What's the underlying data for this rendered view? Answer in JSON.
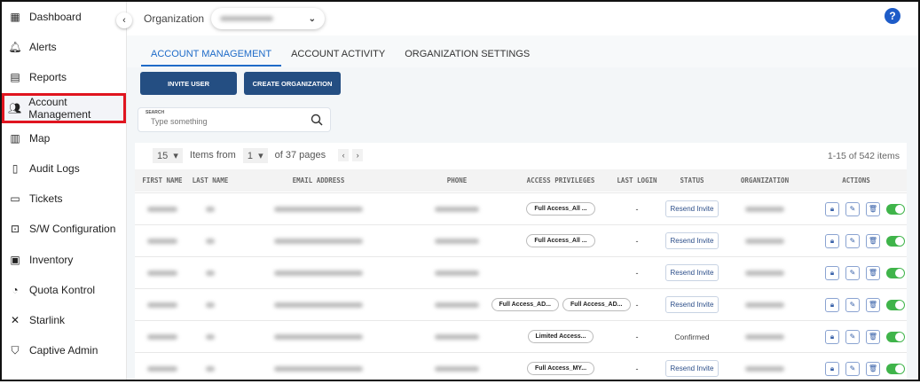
{
  "sidebar": {
    "items": [
      {
        "label": "Dashboard",
        "icon": "grid-icon"
      },
      {
        "label": "Alerts",
        "icon": "bell-icon"
      },
      {
        "label": "Reports",
        "icon": "clipboard-icon"
      },
      {
        "label": "Account Management",
        "icon": "users-icon",
        "active": true
      },
      {
        "label": "Map",
        "icon": "map-icon"
      },
      {
        "label": "Audit Logs",
        "icon": "document-icon"
      },
      {
        "label": "Tickets",
        "icon": "ticket-icon"
      },
      {
        "label": "S/W Configuration",
        "icon": "settings-box-icon"
      },
      {
        "label": "Inventory",
        "icon": "archive-icon"
      },
      {
        "label": "Quota Kontrol",
        "icon": "pie-icon"
      },
      {
        "label": "Starlink",
        "icon": "starlink-icon"
      },
      {
        "label": "Captive Admin",
        "icon": "shield-icon"
      }
    ]
  },
  "header": {
    "org_label": "Organization",
    "help": "?"
  },
  "tabs": [
    "ACCOUNT MANAGEMENT",
    "ACCOUNT ACTIVITY",
    "ORGANIZATION SETTINGS"
  ],
  "buttons": {
    "invite": "INVITE USER",
    "create_org": "CREATE ORGANIZATION"
  },
  "search": {
    "label": "SEARCH",
    "placeholder": "Type something"
  },
  "pager": {
    "page_size": "15",
    "items_from": "Items from",
    "page": "1",
    "of_pages": "of 37 pages",
    "total": "1-15 of 542 items"
  },
  "columns": [
    "FIRST NAME",
    "LAST NAME",
    "EMAIL ADDRESS",
    "PHONE",
    "ACCESS PRIVILEGES",
    "LAST LOGIN",
    "STATUS",
    "ORGANIZATION",
    "ACTIONS"
  ],
  "rows": [
    {
      "privileges": [
        "Full Access_All ..."
      ],
      "last_login": "-",
      "status": "Resend Invite",
      "status_button": true
    },
    {
      "privileges": [
        "Full Access_All ..."
      ],
      "last_login": "-",
      "status": "Resend Invite",
      "status_button": true
    },
    {
      "privileges": [],
      "last_login": "-",
      "status": "Resend Invite",
      "status_button": true
    },
    {
      "privileges": [
        "Full Access_AD...",
        "Full Access_AD..."
      ],
      "last_login": "-",
      "status": "Resend Invite",
      "status_button": true
    },
    {
      "privileges": [
        "Limited Access..."
      ],
      "last_login": "-",
      "status": "Confirmed",
      "status_button": false
    },
    {
      "privileges": [
        "Full Access_MY..."
      ],
      "last_login": "-",
      "status": "Resend Invite",
      "status_button": true
    }
  ],
  "colors": {
    "accent": "#1e6bc8",
    "button": "#244e82",
    "toggle_on": "#3fb44a",
    "highlight": "#e0151f"
  }
}
